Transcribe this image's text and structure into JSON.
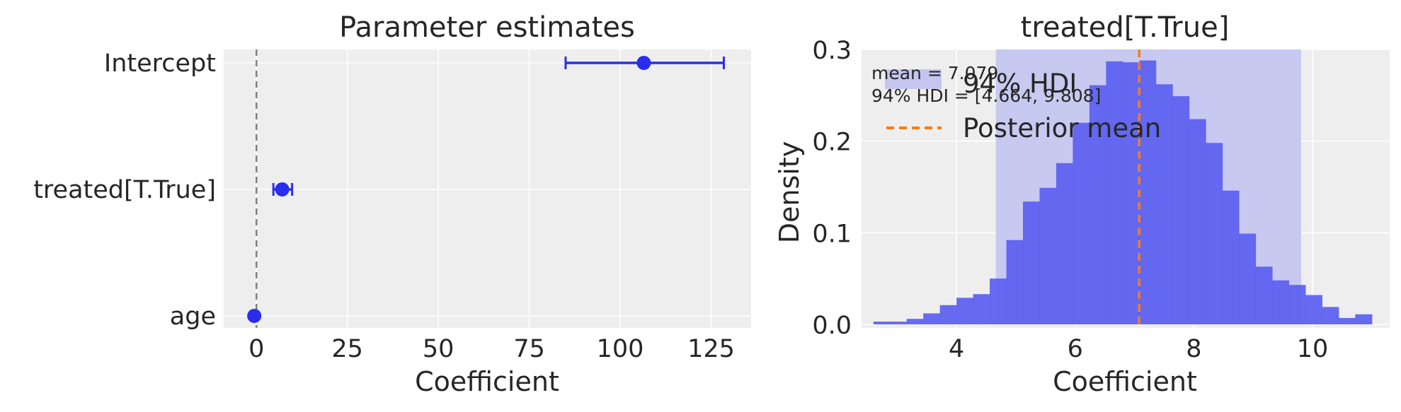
{
  "chart_data": [
    {
      "type": "scatter",
      "title": "Parameter estimates",
      "xlabel": "Coefficient",
      "ylabel": "",
      "xlim": [
        -9,
        136
      ],
      "xticks": [
        0,
        25,
        50,
        75,
        100,
        125
      ],
      "grid": true,
      "reference_line": {
        "x": 0,
        "style": "dashed",
        "color": "#808080"
      },
      "point_color": "#2a2eec",
      "rows": [
        {
          "name": "Intercept",
          "mean": 106.5,
          "low": 85.0,
          "high": 128.5
        },
        {
          "name": "treated[T.True]",
          "mean": 7.08,
          "low": 4.66,
          "high": 9.81
        },
        {
          "name": "age",
          "mean": -0.6,
          "low": -1.0,
          "high": -0.2
        }
      ]
    },
    {
      "type": "bar",
      "title": "treated[T.True]",
      "xlabel": "Coefficient",
      "ylabel": "Density",
      "xlim": [
        2.4,
        11.3
      ],
      "ylim": [
        0,
        0.3
      ],
      "xticks": [
        4,
        6,
        8,
        10
      ],
      "yticks": [
        0.0,
        0.1,
        0.2,
        0.3
      ],
      "grid": true,
      "bar_color": "#5b5ef0",
      "bin_start": 2.6,
      "bin_width": 0.28,
      "values": [
        0.003,
        0.003,
        0.006,
        0.012,
        0.021,
        0.029,
        0.033,
        0.05,
        0.092,
        0.134,
        0.149,
        0.176,
        0.22,
        0.261,
        0.287,
        0.286,
        0.288,
        0.262,
        0.249,
        0.224,
        0.198,
        0.146,
        0.099,
        0.063,
        0.048,
        0.043,
        0.032,
        0.019,
        0.007,
        0.011
      ],
      "hdi": {
        "low": 4.664,
        "high": 9.808,
        "color": "#c4c6ef"
      },
      "mean_line": {
        "x": 7.079,
        "color": "#f57c20",
        "style": "dashed"
      },
      "annotation": [
        "mean = 7.079",
        "94% HDI = [4.664, 9.808]"
      ],
      "legend": {
        "placement": "top-left",
        "entries": [
          "94% HDI",
          "Posterior mean"
        ]
      }
    }
  ]
}
